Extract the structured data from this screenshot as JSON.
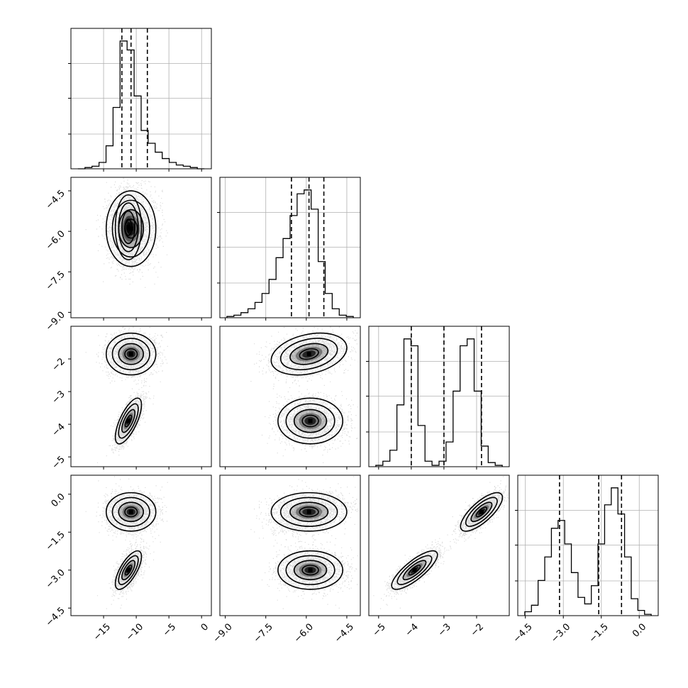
{
  "chart_data": {
    "type": "corner",
    "n_params": 4,
    "ranges": [
      [
        -20,
        1.5
      ],
      [
        -9.2,
        -4.0
      ],
      [
        -5.3,
        -1.0
      ],
      [
        -4.8,
        0.75
      ]
    ],
    "ticks": [
      {
        "values": [
          -15,
          -10,
          -5,
          0
        ],
        "labels": [
          "−15",
          "−10",
          "−5",
          "0"
        ]
      },
      {
        "values": [
          -9.0,
          -7.5,
          -6.0,
          -4.5
        ],
        "labels": [
          "−9.0",
          "−7.5",
          "−6.0",
          "−4.5"
        ]
      },
      {
        "values": [
          -5,
          -4,
          -3,
          -2
        ],
        "labels": [
          "−5",
          "−4",
          "−3",
          "−2"
        ]
      },
      {
        "values": [
          -4.5,
          -3.0,
          -1.5,
          0.0
        ],
        "labels": [
          "−4.5",
          "−3.0",
          "−1.5",
          "0.0"
        ]
      }
    ],
    "quantiles": [
      [
        -12.2,
        -10.8,
        -8.3
      ],
      [
        -6.55,
        -5.9,
        -5.35
      ],
      [
        -4.0,
        -3.0,
        -1.85
      ],
      [
        -3.15,
        -1.6,
        -0.7
      ]
    ],
    "histograms": [
      [
        0.0,
        0.01,
        0.02,
        0.05,
        0.18,
        0.48,
        1.0,
        0.93,
        0.57,
        0.3,
        0.2,
        0.13,
        0.08,
        0.05,
        0.03,
        0.02,
        0.01,
        0.0
      ],
      [
        0.01,
        0.02,
        0.04,
        0.07,
        0.12,
        0.19,
        0.3,
        0.47,
        0.62,
        0.8,
        0.97,
        1.0,
        0.85,
        0.44,
        0.19,
        0.07,
        0.02,
        0.01
      ],
      [
        0.01,
        0.04,
        0.12,
        0.45,
        0.93,
        0.88,
        0.3,
        0.04,
        0.01,
        0.04,
        0.18,
        0.55,
        0.88,
        0.93,
        0.55,
        0.15,
        0.03,
        0.01
      ],
      [
        0.03,
        0.08,
        0.27,
        0.45,
        0.67,
        0.73,
        0.55,
        0.33,
        0.14,
        0.09,
        0.23,
        0.55,
        0.85,
        0.98,
        0.78,
        0.45,
        0.13,
        0.04,
        0.01
      ]
    ],
    "components": [
      {
        "weight": 0.5,
        "mean": [
          -10.8,
          -5.9,
          -1.85,
          -0.7
        ],
        "sd": [
          1.9,
          0.7,
          0.32,
          0.38
        ],
        "corr": [
          [
            1,
            0,
            0,
            0
          ],
          [
            0,
            1,
            0.3,
            0
          ],
          [
            0,
            0.3,
            1,
            0.75
          ],
          [
            0,
            0,
            0.75,
            1
          ]
        ]
      },
      {
        "weight": 0.5,
        "mean": [
          -11.2,
          -5.85,
          -3.9,
          -3.0
        ],
        "sd": [
          1.0,
          0.6,
          0.35,
          0.38
        ],
        "corr": [
          [
            1,
            0,
            0.7,
            0.7
          ],
          [
            0,
            1,
            0,
            0
          ],
          [
            0.7,
            0,
            1,
            0.8
          ],
          [
            0.7,
            0,
            0.8,
            1
          ]
        ]
      }
    ]
  }
}
